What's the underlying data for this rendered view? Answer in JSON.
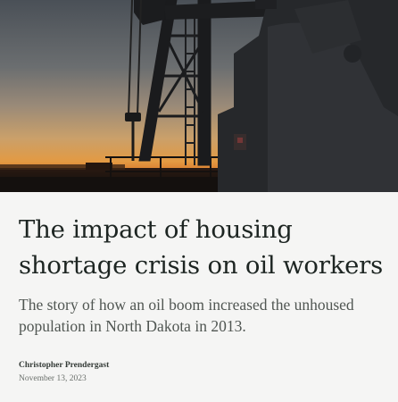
{
  "article": {
    "title": "The impact of housing shortage crisis on oil workers",
    "subtitle": "The story of how an oil boom increased the unhoused population in North Dakota in 2013.",
    "author": "Christopher Prendergast",
    "date": "November 13, 2023"
  },
  "hero_image": {
    "subject": "oil-pumpjack-silhouette-at-sunset"
  },
  "colors": {
    "background": "#f5f5f4",
    "title": "#1d2522",
    "subtitle": "#505652",
    "sky_top": "#4c5259",
    "sky_horizon": "#e49540"
  }
}
